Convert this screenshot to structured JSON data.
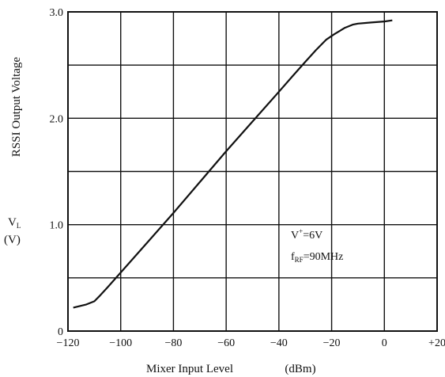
{
  "chart_data": {
    "type": "line",
    "ylabel": "RSSI Output Voltage",
    "ylabel_symbol": "V",
    "ylabel_symbol_sub": "L",
    "ylabel_unit": "(V)",
    "xlabel": "Mixer Input Level",
    "xlabel_unit": "(dBm)",
    "xlim": [
      -120,
      20
    ],
    "ylim": [
      0,
      3.0
    ],
    "x_ticks": [
      {
        "value": -120,
        "label": "−120"
      },
      {
        "value": -100,
        "label": "−100"
      },
      {
        "value": -80,
        "label": "−80"
      },
      {
        "value": -60,
        "label": "−60"
      },
      {
        "value": -40,
        "label": "−40"
      },
      {
        "value": -20,
        "label": "−20"
      },
      {
        "value": 0,
        "label": "0"
      },
      {
        "value": 20,
        "label": "+20"
      }
    ],
    "y_ticks": [
      {
        "value": 0,
        "label": "0"
      },
      {
        "value": 1.0,
        "label": "1.0"
      },
      {
        "value": 2.0,
        "label": "2.0"
      },
      {
        "value": 3.0,
        "label": "3.0"
      }
    ],
    "grid": true,
    "grid_step_x": 20,
    "grid_step_y": 0.5,
    "series": [
      {
        "x": [
          -118,
          -113,
          -110,
          -108,
          -105,
          -100,
          -90,
          -80,
          -70,
          -60,
          -50,
          -40,
          -35,
          -30,
          -26,
          -22,
          -19,
          -17,
          -15,
          -12,
          -10,
          -5,
          0,
          3
        ],
        "y": [
          0.22,
          0.25,
          0.28,
          0.33,
          0.41,
          0.55,
          0.83,
          1.11,
          1.4,
          1.69,
          1.97,
          2.25,
          2.39,
          2.53,
          2.64,
          2.74,
          2.79,
          2.82,
          2.85,
          2.88,
          2.89,
          2.9,
          2.91,
          2.92
        ]
      }
    ],
    "annotations": [
      {
        "main": "V",
        "sup": "+",
        "rest": "=6V"
      },
      {
        "main": "f",
        "sub": "RF",
        "rest": "=90MHz"
      }
    ]
  }
}
